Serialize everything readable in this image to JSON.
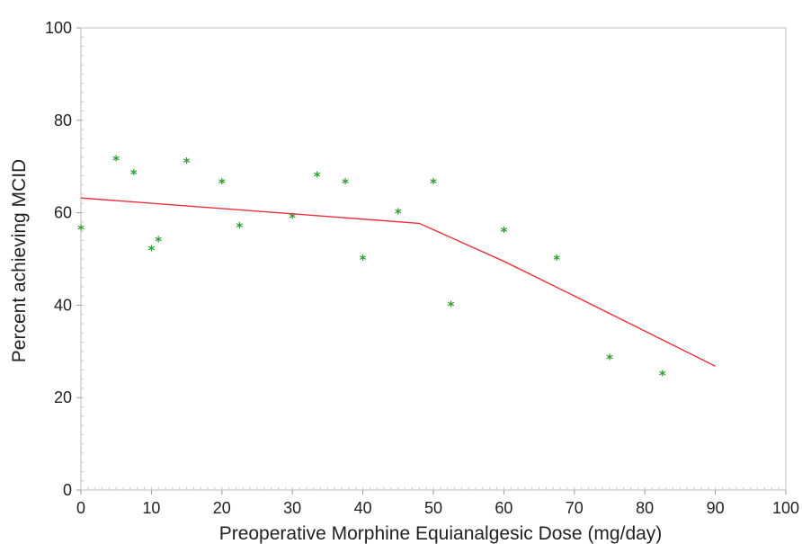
{
  "chart_data": {
    "type": "scatter",
    "xlabel": "Preoperative Morphine Equianalgesic Dose (mg/day)",
    "ylabel": "Percent achieving MCID",
    "xlim": [
      0,
      100
    ],
    "ylim": [
      0,
      100
    ],
    "x_ticks": [
      0,
      10,
      20,
      30,
      40,
      50,
      60,
      70,
      80,
      90,
      100
    ],
    "y_ticks": [
      0,
      20,
      40,
      60,
      80,
      100
    ],
    "grid": false,
    "series": [
      {
        "type": "scatter",
        "marker": "*",
        "color": "#2e9e2e",
        "points": [
          [
            0,
            56.5
          ],
          [
            5,
            71.5
          ],
          [
            7.5,
            68.5
          ],
          [
            10,
            52
          ],
          [
            11,
            54
          ],
          [
            15,
            71
          ],
          [
            20,
            66.5
          ],
          [
            22.5,
            57
          ],
          [
            30,
            59
          ],
          [
            33.5,
            68
          ],
          [
            37.5,
            66.5
          ],
          [
            40,
            50
          ],
          [
            45,
            60
          ],
          [
            50,
            66.5
          ],
          [
            52.5,
            40
          ],
          [
            60,
            56
          ],
          [
            67.5,
            50
          ],
          [
            75,
            28.5
          ],
          [
            82.5,
            25
          ]
        ]
      },
      {
        "type": "line",
        "color": "#e8303a",
        "points": [
          [
            0,
            63.2
          ],
          [
            48,
            57.7
          ],
          [
            60,
            49.5
          ],
          [
            70,
            42
          ],
          [
            90,
            26.8
          ]
        ]
      }
    ]
  }
}
